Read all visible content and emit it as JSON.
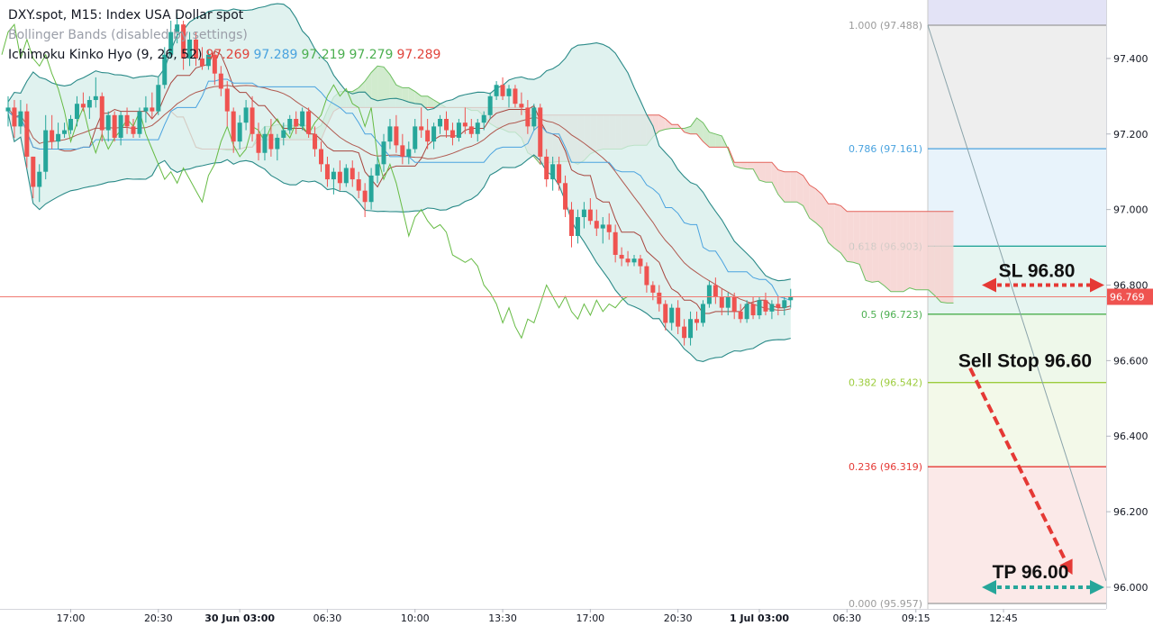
{
  "legend": {
    "title": "DXY.spot, M15: Index USA Dollar spot",
    "bollinger": "Bollinger Bands (disabled by settings)",
    "ichimoku": "Ichimoku Kinko Hyo (9, 26, 52)",
    "ichimoku_values": [
      "97.269",
      "97.289",
      "97.219",
      "97.279",
      "97.289"
    ]
  },
  "colors": {
    "bull": "#26a69a",
    "bear": "#ef5350",
    "tenkan": "#e0443c",
    "kijun": "#4aa3df",
    "chikou": "#66bb44",
    "bands": "#2a8a88",
    "band_fill": "#d6ede9",
    "cloud_bull": "#c9e8c5",
    "cloud_bear": "#f6d2d0",
    "price_line": "#f07a72",
    "annot_red": "#e53935",
    "annot_green": "#26a69a"
  },
  "chart_data": {
    "type": "candlestick",
    "symbol": "DXY.spot",
    "timeframe": "M15",
    "title": "DXY.spot, M15: Index USA Dollar spot",
    "ylim": [
      95.957,
      97.52
    ],
    "y_ticks": [
      "97.400",
      "97.200",
      "97.000",
      "96.800",
      "96.600",
      "96.400",
      "96.200",
      "96.000"
    ],
    "x_ticks": [
      {
        "label": "17:00",
        "bar": 10,
        "bold": false
      },
      {
        "label": "20:30",
        "bar": 24,
        "bold": false
      },
      {
        "label": "30 Jun 03:00",
        "bar": 37,
        "bold": true
      },
      {
        "label": "06:30",
        "bar": 51,
        "bold": false
      },
      {
        "label": "10:00",
        "bar": 65,
        "bold": false
      },
      {
        "label": "13:30",
        "bar": 79,
        "bold": false
      },
      {
        "label": "17:00",
        "bar": 93,
        "bold": false
      },
      {
        "label": "20:30",
        "bar": 107,
        "bold": false
      },
      {
        "label": "1 Jul 03:00",
        "bar": 120,
        "bold": true
      },
      {
        "label": "06:30",
        "bar": 134,
        "bold": false
      },
      {
        "label": "09:15",
        "bar": 145,
        "bold": false
      },
      {
        "label": "12:45",
        "bar": 159,
        "bold": false
      }
    ],
    "current_price": "96.769",
    "fibonacci": [
      {
        "level": "1.000",
        "price": 97.488,
        "label": "1.000 (97.488)",
        "color": "#9b9b9b",
        "fill": "#eeeeee"
      },
      {
        "level": "0.786",
        "price": 97.161,
        "label": "0.786 (97.161)",
        "color": "#4aa3df",
        "fill": "#e8f3fb"
      },
      {
        "level": "0.618",
        "price": 96.903,
        "label": "0.618 (96.903)",
        "color": "#26a69a",
        "fill": "#e6f5f1"
      },
      {
        "level": "0.5",
        "price": 96.723,
        "label": "0.5 (96.723)",
        "color": "#4caf50",
        "fill": "#eef8ea"
      },
      {
        "level": "0.382",
        "price": 96.542,
        "label": "0.382 (96.542)",
        "color": "#9ccc3c",
        "fill": "#f3f9e9"
      },
      {
        "level": "0.236",
        "price": 96.319,
        "label": "0.236 (96.319)",
        "color": "#e53935",
        "fill": "#fbe9e8"
      },
      {
        "level": "0.000",
        "price": 95.957,
        "label": "0.000 (95.957)",
        "color": "#9b9b9b",
        "fill": ""
      }
    ],
    "annotations": {
      "sl": "SL 96.80",
      "sell_stop": "Sell Stop 96.60",
      "tp": "TP 96.00"
    },
    "candles": [
      [
        97.26,
        97.3,
        97.22,
        97.27
      ],
      [
        97.27,
        97.29,
        97.19,
        97.22
      ],
      [
        97.22,
        97.29,
        97.2,
        97.26
      ],
      [
        97.26,
        97.28,
        97.11,
        97.14
      ],
      [
        97.14,
        97.14,
        97.03,
        97.06
      ],
      [
        97.06,
        97.12,
        97.02,
        97.1
      ],
      [
        97.1,
        97.25,
        97.08,
        97.21
      ],
      [
        97.21,
        97.25,
        97.16,
        97.18
      ],
      [
        97.18,
        97.23,
        97.16,
        97.2
      ],
      [
        97.2,
        97.23,
        97.19,
        97.21
      ],
      [
        97.21,
        97.25,
        97.2,
        97.24
      ],
      [
        97.24,
        97.3,
        97.22,
        97.28
      ],
      [
        97.28,
        97.31,
        97.26,
        97.27
      ],
      [
        97.27,
        97.3,
        97.24,
        97.29
      ],
      [
        97.29,
        97.35,
        97.27,
        97.3
      ],
      [
        97.3,
        97.31,
        97.18,
        97.21
      ],
      [
        97.21,
        97.26,
        97.18,
        97.25
      ],
      [
        97.25,
        97.26,
        97.18,
        97.19
      ],
      [
        97.19,
        97.26,
        97.17,
        97.25
      ],
      [
        97.25,
        97.27,
        97.2,
        97.22
      ],
      [
        97.22,
        97.24,
        97.19,
        97.2
      ],
      [
        97.2,
        97.27,
        97.19,
        97.26
      ],
      [
        97.26,
        97.3,
        97.23,
        97.27
      ],
      [
        97.27,
        97.31,
        97.24,
        97.26
      ],
      [
        97.26,
        97.35,
        97.25,
        97.33
      ],
      [
        97.33,
        97.43,
        97.32,
        97.41
      ],
      [
        97.41,
        97.5,
        97.4,
        97.47
      ],
      [
        97.47,
        97.52,
        97.44,
        97.49
      ],
      [
        97.49,
        97.5,
        97.37,
        97.4
      ],
      [
        97.4,
        97.47,
        97.38,
        97.45
      ],
      [
        97.45,
        97.47,
        97.38,
        97.4
      ],
      [
        97.4,
        97.43,
        97.37,
        97.38
      ],
      [
        97.38,
        97.42,
        97.37,
        97.41
      ],
      [
        97.41,
        97.42,
        97.33,
        97.36
      ],
      [
        97.36,
        97.38,
        97.3,
        97.32
      ],
      [
        97.32,
        97.34,
        97.22,
        97.26
      ],
      [
        97.26,
        97.27,
        97.15,
        97.18
      ],
      [
        97.18,
        97.25,
        97.16,
        97.23
      ],
      [
        97.23,
        97.29,
        97.21,
        97.27
      ],
      [
        97.27,
        97.3,
        97.18,
        97.2
      ],
      [
        97.2,
        97.23,
        97.13,
        97.15
      ],
      [
        97.15,
        97.22,
        97.13,
        97.2
      ],
      [
        97.2,
        97.24,
        97.14,
        97.16
      ],
      [
        97.16,
        97.2,
        97.13,
        97.19
      ],
      [
        97.19,
        97.23,
        97.17,
        97.21
      ],
      [
        97.21,
        97.25,
        97.2,
        97.24
      ],
      [
        97.24,
        97.26,
        97.2,
        97.22
      ],
      [
        97.22,
        97.27,
        97.21,
        97.26
      ],
      [
        97.26,
        97.27,
        97.19,
        97.2
      ],
      [
        97.2,
        97.22,
        97.14,
        97.16
      ],
      [
        97.16,
        97.18,
        97.1,
        97.12
      ],
      [
        97.12,
        97.14,
        97.06,
        97.08
      ],
      [
        97.08,
        97.11,
        97.04,
        97.1
      ],
      [
        97.1,
        97.13,
        97.05,
        97.07
      ],
      [
        97.07,
        97.12,
        97.06,
        97.11
      ],
      [
        97.11,
        97.13,
        97.06,
        97.08
      ],
      [
        97.08,
        97.1,
        97.03,
        97.05
      ],
      [
        97.05,
        97.07,
        96.98,
        97.02
      ],
      [
        97.02,
        97.11,
        97.0,
        97.09
      ],
      [
        97.09,
        97.14,
        97.07,
        97.12
      ],
      [
        97.12,
        97.2,
        97.1,
        97.18
      ],
      [
        97.18,
        97.24,
        97.16,
        97.22
      ],
      [
        97.22,
        97.25,
        97.15,
        97.17
      ],
      [
        97.17,
        97.2,
        97.12,
        97.14
      ],
      [
        97.14,
        97.18,
        97.12,
        97.16
      ],
      [
        97.16,
        97.24,
        97.15,
        97.22
      ],
      [
        97.22,
        97.27,
        97.19,
        97.21
      ],
      [
        97.21,
        97.24,
        97.16,
        97.18
      ],
      [
        97.18,
        97.23,
        97.16,
        97.22
      ],
      [
        97.22,
        97.25,
        97.2,
        97.24
      ],
      [
        97.24,
        97.26,
        97.19,
        97.21
      ],
      [
        97.21,
        97.23,
        97.17,
        97.19
      ],
      [
        97.19,
        97.24,
        97.18,
        97.23
      ],
      [
        97.23,
        97.27,
        97.2,
        97.22
      ],
      [
        97.22,
        97.24,
        97.19,
        97.2
      ],
      [
        97.2,
        97.24,
        97.18,
        97.23
      ],
      [
        97.23,
        97.26,
        97.21,
        97.25
      ],
      [
        97.25,
        97.31,
        97.24,
        97.3
      ],
      [
        97.3,
        97.34,
        97.29,
        97.33
      ],
      [
        97.33,
        97.35,
        97.29,
        97.3
      ],
      [
        97.3,
        97.33,
        97.27,
        97.32
      ],
      [
        97.32,
        97.33,
        97.27,
        97.28
      ],
      [
        97.28,
        97.31,
        97.25,
        97.27
      ],
      [
        97.27,
        97.29,
        97.2,
        97.22
      ],
      [
        97.22,
        97.28,
        97.21,
        97.27
      ],
      [
        97.27,
        97.28,
        97.12,
        97.14
      ],
      [
        97.14,
        97.16,
        97.06,
        97.08
      ],
      [
        97.08,
        97.14,
        97.05,
        97.12
      ],
      [
        97.12,
        97.14,
        97.05,
        97.07
      ],
      [
        97.07,
        97.09,
        96.98,
        97.0
      ],
      [
        97.0,
        97.02,
        96.9,
        96.93
      ],
      [
        96.93,
        97.0,
        96.91,
        96.98
      ],
      [
        96.98,
        97.02,
        96.95,
        97.0
      ],
      [
        97.0,
        97.03,
        96.96,
        96.97
      ],
      [
        96.97,
        97.0,
        96.93,
        96.95
      ],
      [
        96.95,
        96.98,
        96.91,
        96.96
      ],
      [
        96.96,
        96.99,
        96.92,
        96.94
      ],
      [
        96.94,
        96.96,
        96.86,
        96.88
      ],
      [
        96.88,
        96.9,
        96.85,
        96.87
      ],
      [
        96.87,
        96.89,
        96.85,
        96.86
      ],
      [
        96.86,
        96.88,
        96.85,
        96.87
      ],
      [
        96.87,
        96.88,
        96.83,
        96.85
      ],
      [
        96.85,
        96.86,
        96.78,
        96.8
      ],
      [
        96.8,
        96.81,
        96.76,
        96.78
      ],
      [
        96.78,
        96.8,
        96.73,
        96.75
      ],
      [
        96.75,
        96.76,
        96.68,
        96.7
      ],
      [
        96.7,
        96.75,
        96.68,
        96.74
      ],
      [
        96.74,
        96.76,
        96.67,
        96.69
      ],
      [
        96.69,
        96.71,
        96.64,
        96.66
      ],
      [
        96.66,
        96.73,
        96.64,
        96.71
      ],
      [
        96.71,
        96.73,
        96.68,
        96.7
      ],
      [
        96.7,
        96.76,
        96.69,
        96.75
      ],
      [
        96.75,
        96.81,
        96.74,
        96.8
      ],
      [
        96.8,
        96.82,
        96.75,
        96.77
      ],
      [
        96.77,
        96.79,
        96.72,
        96.74
      ],
      [
        96.74,
        96.78,
        96.72,
        96.77
      ],
      [
        96.77,
        96.78,
        96.71,
        96.73
      ],
      [
        96.73,
        96.75,
        96.7,
        96.71
      ],
      [
        96.71,
        96.76,
        96.7,
        96.75
      ],
      [
        96.75,
        96.77,
        96.71,
        96.72
      ],
      [
        96.72,
        96.77,
        96.71,
        96.76
      ],
      [
        96.76,
        96.78,
        96.72,
        96.73
      ],
      [
        96.73,
        96.76,
        96.71,
        96.75
      ],
      [
        96.75,
        96.77,
        96.72,
        96.74
      ],
      [
        96.74,
        96.77,
        96.72,
        96.76
      ],
      [
        96.76,
        96.79,
        96.74,
        96.77
      ]
    ]
  }
}
